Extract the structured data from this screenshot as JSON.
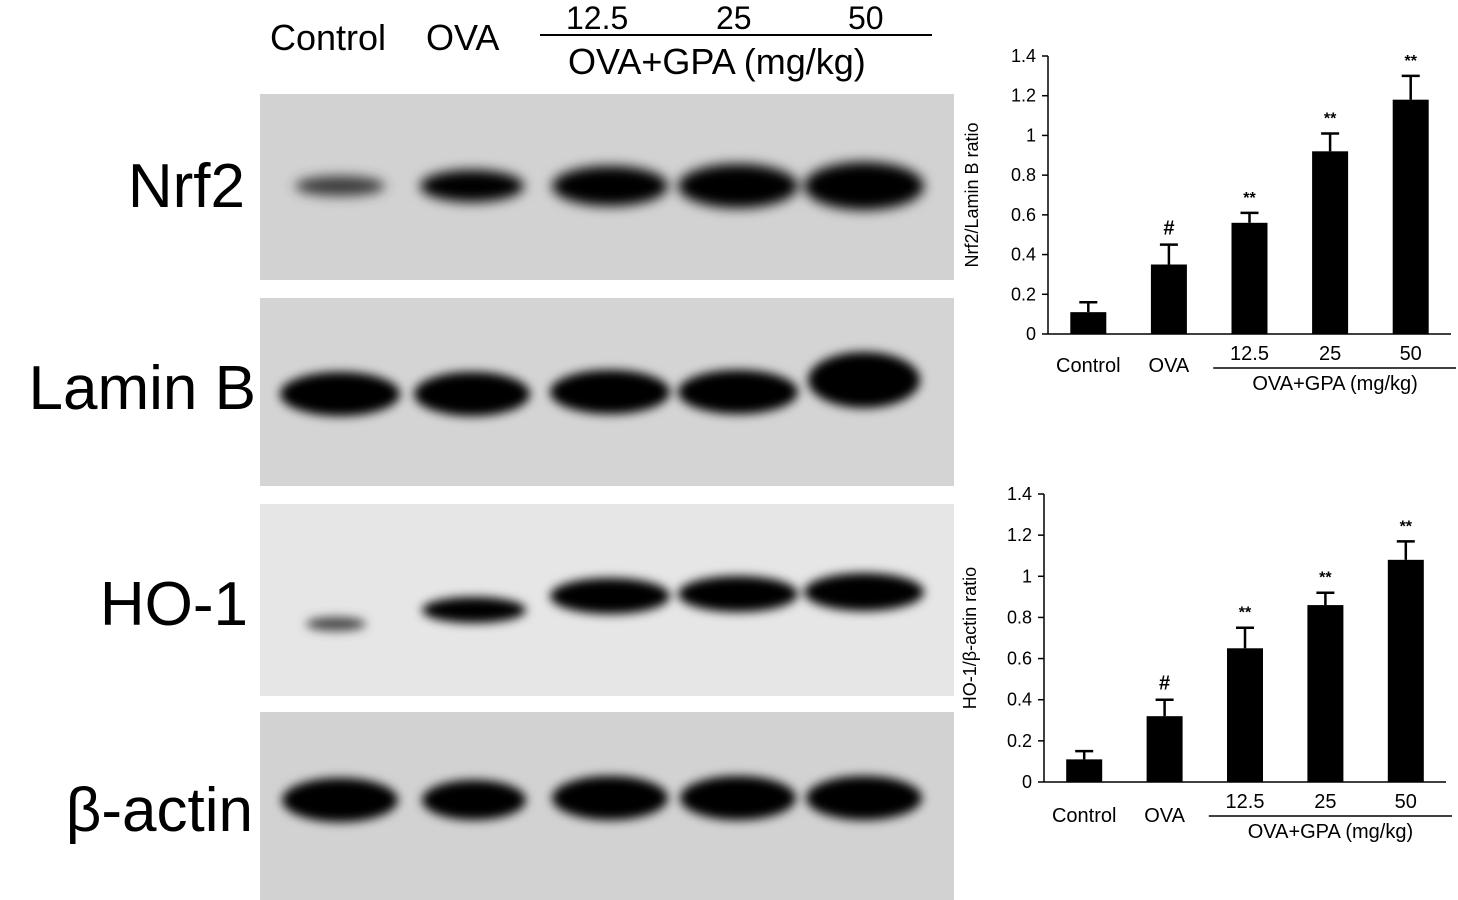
{
  "blot_header": {
    "lane_control": "Control",
    "lane_ova": "OVA",
    "dose_1": "12.5",
    "dose_2": "25",
    "dose_3": "50",
    "group_label": "OVA+GPA (mg/kg)"
  },
  "blots": [
    {
      "label": "Nrf2",
      "bg": "#d2d2d2"
    },
    {
      "label": "Lamin B",
      "bg": "#d4d4d4"
    },
    {
      "label": "HO-1",
      "bg": "#e6e6e6"
    },
    {
      "label": "β-actin",
      "bg": "#d2d2d2"
    }
  ],
  "chart_data": [
    {
      "type": "bar",
      "categories": [
        "Control",
        "OVA",
        "12.5",
        "25",
        "50"
      ],
      "values": [
        0.11,
        0.35,
        0.56,
        0.92,
        1.18
      ],
      "errors": [
        0.05,
        0.1,
        0.05,
        0.09,
        0.12
      ],
      "annotations": [
        "",
        "#",
        "**",
        "**",
        "**"
      ],
      "ylabel": "Nrf2/Lamin B ratio",
      "ylim": [
        0,
        1.4
      ],
      "yticks": [
        "0",
        "0.2",
        "0.4",
        "0.6",
        "0.8",
        "1",
        "1.2",
        "1.4"
      ],
      "group_label": "OVA+GPA (mg/kg)",
      "bar_color": "#000000"
    },
    {
      "type": "bar",
      "categories": [
        "Control",
        "OVA",
        "12.5",
        "25",
        "50"
      ],
      "values": [
        0.11,
        0.32,
        0.65,
        0.86,
        1.08
      ],
      "errors": [
        0.04,
        0.08,
        0.1,
        0.06,
        0.09
      ],
      "annotations": [
        "",
        "#",
        "**",
        "**",
        "**"
      ],
      "ylabel": "HO-1/β-actin ratio",
      "ylim": [
        0,
        1.4
      ],
      "yticks": [
        "0",
        "0.2",
        "0.4",
        "0.6",
        "0.8",
        "1",
        "1.2",
        "1.4"
      ],
      "group_label": "OVA+GPA (mg/kg)",
      "bar_color": "#000000"
    }
  ]
}
